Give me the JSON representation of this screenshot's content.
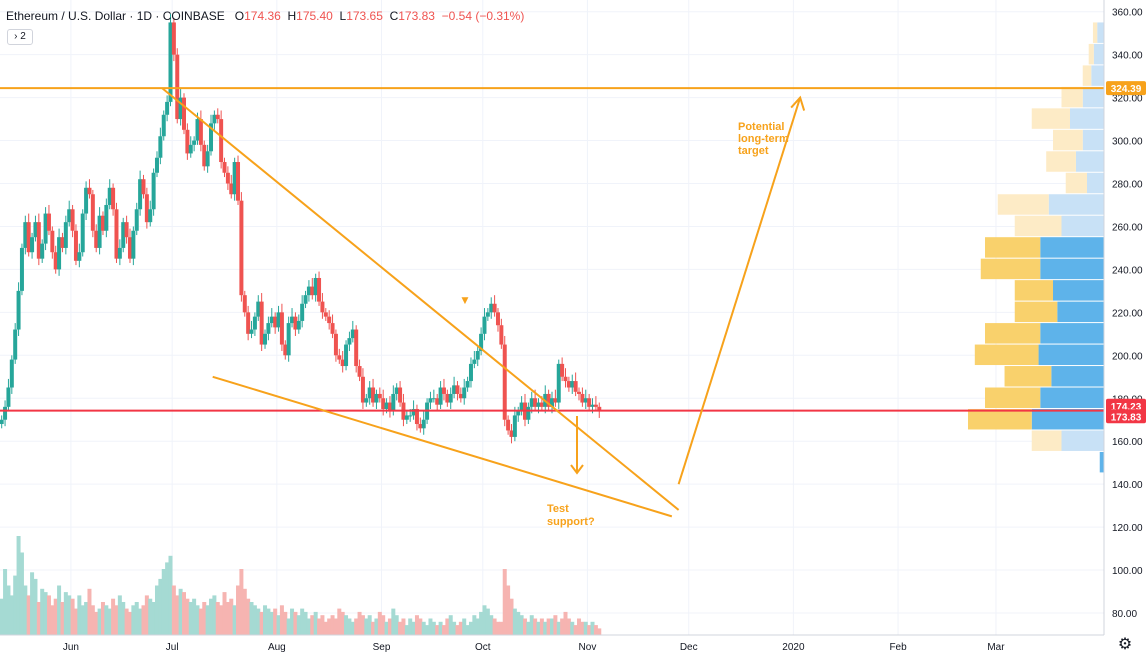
{
  "header": {
    "symbol": "Ethereum / U.S. Dollar · 1D · COINBASE",
    "o_label": "O",
    "o_value": "174.36",
    "h_label": "H",
    "h_value": "175.40",
    "l_label": "L",
    "l_value": "173.65",
    "c_label": "C",
    "c_value": "173.83",
    "change": "−0.54 (−0.31%)"
  },
  "indicator_toggle": "› 2",
  "settings_icon": "gear-icon",
  "colors": {
    "up": "#26a69a",
    "down": "#ef5350",
    "drawing": "#f7a21b",
    "hline": "#f23645"
  },
  "chart_data": {
    "type": "candlestick",
    "price_axis": {
      "ticks": [
        "360.00",
        "340.00",
        "320.00",
        "300.00",
        "280.00",
        "260.00",
        "240.00",
        "220.00",
        "200.00",
        "180.00",
        "160.00",
        "140.00",
        "120.00",
        "100.00",
        "80.00"
      ],
      "range": [
        72,
        362
      ]
    },
    "time_axis": {
      "labels": [
        "Jun",
        "Jul",
        "Aug",
        "Sep",
        "Oct",
        "Nov",
        "Dec",
        "2020",
        "Feb",
        "Mar"
      ],
      "range": [
        "2019-05-11",
        "2020-04-02"
      ]
    },
    "price_labels": [
      {
        "value": "324.39",
        "kind": "resistance"
      },
      {
        "value": "174.23",
        "kind": "current"
      },
      {
        "value": "173.83",
        "kind": "last"
      }
    ],
    "horizontal_lines": [
      {
        "price": 324.39,
        "color": "#f7a21b"
      },
      {
        "price": 174.23,
        "color": "#f23645"
      }
    ],
    "trend_lines": [
      {
        "from": [
          "2019-06-28",
          324.4
        ],
        "to": [
          "2019-11-28",
          128
        ],
        "label": "falling-wedge-resistance"
      },
      {
        "from": [
          "2019-07-13",
          190
        ],
        "to": [
          "2019-11-26",
          125
        ],
        "label": "falling-wedge-support"
      },
      {
        "from": [
          "2019-11-28",
          140
        ],
        "to": [
          "2020-01-03",
          320
        ],
        "label": "projection"
      }
    ],
    "annotations": [
      {
        "text": "Potential long-term target"
      },
      {
        "text": "Test support?"
      }
    ],
    "series": [
      {
        "name": "",
        "close": [
          170,
          176,
          185,
          198,
          212,
          230,
          250,
          262,
          248,
          255,
          262,
          245,
          252,
          266,
          258,
          248,
          240,
          255,
          250,
          262,
          268,
          258,
          244,
          248,
          266,
          278,
          275,
          258,
          250,
          265,
          258,
          270,
          278,
          268,
          245,
          250,
          262,
          255,
          245,
          258,
          268,
          282,
          275,
          262,
          268,
          285,
          292,
          302,
          312,
          318,
          355,
          340,
          310,
          320,
          305,
          294,
          298,
          300,
          310,
          298,
          288,
          295,
          308,
          312,
          310,
          290,
          285,
          280,
          275,
          290,
          272,
          228,
          220,
          210,
          212,
          218,
          225,
          205,
          210,
          215,
          218,
          213,
          220,
          205,
          200,
          215,
          218,
          212,
          216,
          224,
          228,
          232,
          228,
          236,
          225,
          220,
          218,
          215,
          210,
          200,
          198,
          195,
          205,
          208,
          212,
          195,
          190,
          178,
          180,
          185,
          178,
          182,
          180,
          175,
          178,
          174,
          182,
          185,
          178,
          170,
          172,
          172,
          175,
          168,
          166,
          170,
          178,
          180,
          180,
          177,
          185,
          182,
          178,
          182,
          186,
          182,
          180,
          185,
          188,
          196,
          198,
          202,
          210,
          218,
          220,
          224,
          220,
          214,
          205,
          170,
          165,
          162,
          172,
          174,
          178,
          170,
          176,
          180,
          176,
          178,
          176,
          182,
          176,
          180,
          178,
          196,
          190,
          188,
          185,
          188,
          183,
          182,
          178,
          180,
          176,
          177,
          176,
          173.83
        ],
        "volume": [
          11,
          20,
          15,
          12,
          18,
          30,
          25,
          15,
          12,
          19,
          17,
          10,
          14,
          13,
          12,
          9,
          11,
          15,
          10,
          13,
          12,
          11,
          8,
          12,
          9,
          10,
          14,
          9,
          7,
          8,
          10,
          9,
          8,
          11,
          9,
          12,
          10,
          8,
          7,
          9,
          10,
          8,
          9,
          12,
          11,
          10,
          15,
          17,
          20,
          22,
          24,
          15,
          12,
          14,
          13,
          11,
          10,
          11,
          9,
          8,
          10,
          9,
          11,
          12,
          10,
          9,
          13,
          10,
          11,
          9,
          15,
          20,
          14,
          11,
          10,
          9,
          8,
          7,
          9,
          8,
          7,
          8,
          6,
          9,
          7,
          5,
          8,
          7,
          6,
          8,
          7,
          5,
          6,
          7,
          5,
          6,
          4,
          5,
          6,
          5,
          8,
          7,
          6,
          5,
          4,
          5,
          7,
          6,
          5,
          6,
          4,
          5,
          7,
          6,
          4,
          5,
          8,
          6,
          4,
          5,
          3,
          5,
          4,
          6,
          5,
          4,
          3,
          5,
          4,
          3,
          4,
          3,
          5,
          6,
          4,
          3,
          4,
          5,
          3,
          4,
          6,
          5,
          7,
          9,
          8,
          6,
          5,
          4,
          4,
          20,
          15,
          11,
          8,
          7,
          6,
          5,
          4,
          6,
          5,
          4,
          5,
          4,
          5,
          5,
          6,
          4,
          5,
          7,
          5,
          4,
          3,
          5,
          4,
          4,
          3,
          4,
          3,
          2
        ]
      }
    ],
    "volume_profile": [
      {
        "price": 350,
        "buy": 5,
        "sell": 8
      },
      {
        "price": 340,
        "buy": 6,
        "sell": 12
      },
      {
        "price": 330,
        "buy": 10,
        "sell": 15
      },
      {
        "price": 320,
        "buy": 25,
        "sell": 25
      },
      {
        "price": 310,
        "buy": 45,
        "sell": 40
      },
      {
        "price": 300,
        "buy": 35,
        "sell": 25
      },
      {
        "price": 290,
        "buy": 35,
        "sell": 33
      },
      {
        "price": 280,
        "buy": 25,
        "sell": 20
      },
      {
        "price": 270,
        "buy": 60,
        "sell": 65
      },
      {
        "price": 260,
        "buy": 55,
        "sell": 50
      },
      {
        "price": 250,
        "buy": 65,
        "sell": 75
      },
      {
        "price": 240,
        "buy": 70,
        "sell": 75
      },
      {
        "price": 230,
        "buy": 45,
        "sell": 60
      },
      {
        "price": 220,
        "buy": 50,
        "sell": 55
      },
      {
        "price": 210,
        "buy": 65,
        "sell": 75
      },
      {
        "price": 200,
        "buy": 75,
        "sell": 77
      },
      {
        "price": 190,
        "buy": 55,
        "sell": 62
      },
      {
        "price": 180,
        "buy": 65,
        "sell": 75
      },
      {
        "price": 170,
        "buy": 75,
        "sell": 85
      },
      {
        "price": 160,
        "buy": 35,
        "sell": 50
      },
      {
        "price": 150,
        "buy": 0,
        "sell": 5
      }
    ]
  }
}
